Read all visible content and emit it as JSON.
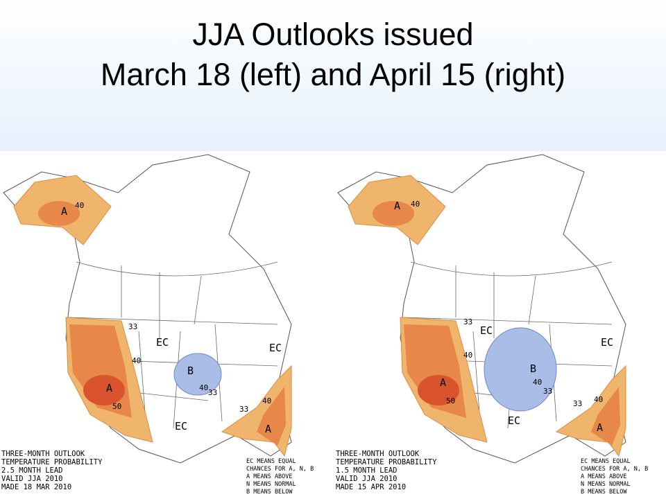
{
  "title": [
    "JJA Outlooks issued",
    "March 18 (left) and April 15 (right)"
  ],
  "maps": [
    {
      "header": [
        "THREE-MONTH OUTLOOK",
        "TEMPERATURE PROBABILITY",
        "2.5 MONTH LEAD",
        "VALID JJA 2010",
        "MADE 18 MAR 2010"
      ],
      "key": [
        "EC MEANS EQUAL",
        "CHANCES FOR A, N, B",
        "A MEANS ABOVE",
        "N MEANS NORMAL",
        "B MEANS BELOW"
      ],
      "labels": [
        "A",
        "40",
        "33",
        "EC",
        "40",
        "A",
        "50",
        "B",
        "40",
        "33",
        "EC",
        "40",
        "33",
        "A",
        "EC"
      ]
    },
    {
      "header": [
        "THREE-MONTH OUTLOOK",
        "TEMPERATURE PROBABILITY",
        "1.5 MONTH LEAD",
        "VALID JJA 2010",
        "MADE 15 APR 2010"
      ],
      "key": [
        "EC MEANS EQUAL",
        "CHANCES FOR A, N, B",
        "A MEANS ABOVE",
        "N MEANS NORMAL",
        "B MEANS BELOW"
      ],
      "labels": [
        "A",
        "40",
        "33",
        "EC",
        "40",
        "A",
        "50",
        "B",
        "40",
        "33",
        "EC",
        "40",
        "33",
        "A",
        "EC"
      ]
    }
  ]
}
